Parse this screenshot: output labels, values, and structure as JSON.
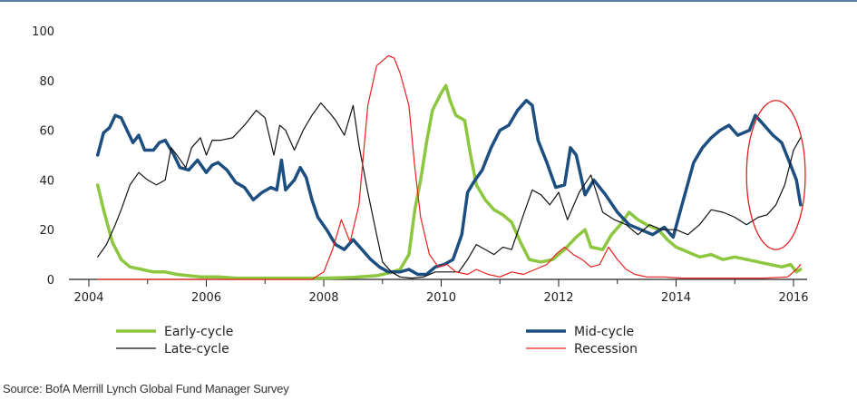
{
  "page": {
    "source": "Source: BofA Merrill Lynch Global Fund Manager Survey",
    "rule_color": "#5b7f9e"
  },
  "chart_data": {
    "type": "line",
    "title": "",
    "xlabel": "",
    "ylabel": "",
    "xlim": [
      2004,
      2016.3
    ],
    "ylim": [
      0,
      100
    ],
    "x_ticks": [
      "2004",
      "2006",
      "2008",
      "2010",
      "2012",
      "2014",
      "2016"
    ],
    "y_ticks": [
      "100",
      "80",
      "60",
      "40",
      "20",
      "0"
    ],
    "grid": false,
    "legend_position": "bottom",
    "annotation": {
      "type": "ellipse",
      "color": "#e02020",
      "center_x": 2015.7,
      "center_y": 42,
      "rx": 0.5,
      "ry": 30
    },
    "series": [
      {
        "name": "Early-cycle",
        "color": "#8dc63f",
        "width": 3.5,
        "points": [
          [
            2004.15,
            38
          ],
          [
            2004.25,
            28
          ],
          [
            2004.4,
            15
          ],
          [
            2004.55,
            8
          ],
          [
            2004.7,
            5
          ],
          [
            2004.9,
            4
          ],
          [
            2005.1,
            3
          ],
          [
            2005.3,
            3
          ],
          [
            2005.5,
            2
          ],
          [
            2005.7,
            1.5
          ],
          [
            2005.9,
            1
          ],
          [
            2006.2,
            1
          ],
          [
            2006.5,
            0.5
          ],
          [
            2007,
            0.5
          ],
          [
            2007.5,
            0.5
          ],
          [
            2008,
            0.5
          ],
          [
            2008.5,
            0.8
          ],
          [
            2008.9,
            1.5
          ],
          [
            2009.1,
            2.5
          ],
          [
            2009.3,
            4
          ],
          [
            2009.45,
            10
          ],
          [
            2009.55,
            28
          ],
          [
            2009.65,
            40
          ],
          [
            2009.75,
            55
          ],
          [
            2009.85,
            68
          ],
          [
            2010.0,
            75
          ],
          [
            2010.08,
            78
          ],
          [
            2010.15,
            72
          ],
          [
            2010.25,
            66
          ],
          [
            2010.4,
            64
          ],
          [
            2010.5,
            50
          ],
          [
            2010.6,
            38
          ],
          [
            2010.75,
            32
          ],
          [
            2010.9,
            28
          ],
          [
            2011.05,
            26
          ],
          [
            2011.2,
            23
          ],
          [
            2011.35,
            15
          ],
          [
            2011.5,
            8
          ],
          [
            2011.7,
            7
          ],
          [
            2011.9,
            8
          ],
          [
            2012.1,
            12
          ],
          [
            2012.3,
            17
          ],
          [
            2012.45,
            20
          ],
          [
            2012.55,
            13
          ],
          [
            2012.75,
            12
          ],
          [
            2012.9,
            18
          ],
          [
            2013.05,
            22
          ],
          [
            2013.2,
            27
          ],
          [
            2013.35,
            24
          ],
          [
            2013.5,
            22
          ],
          [
            2013.7,
            20
          ],
          [
            2013.85,
            16
          ],
          [
            2014.0,
            13
          ],
          [
            2014.2,
            11
          ],
          [
            2014.4,
            9
          ],
          [
            2014.6,
            10
          ],
          [
            2014.8,
            8
          ],
          [
            2015.0,
            9
          ],
          [
            2015.2,
            8
          ],
          [
            2015.4,
            7
          ],
          [
            2015.6,
            6
          ],
          [
            2015.8,
            5
          ],
          [
            2015.95,
            6
          ],
          [
            2016.05,
            3
          ],
          [
            2016.12,
            4
          ]
        ]
      },
      {
        "name": "Mid-cycle",
        "color": "#1c4e80",
        "width": 3.5,
        "points": [
          [
            2004.15,
            50
          ],
          [
            2004.25,
            59
          ],
          [
            2004.35,
            61
          ],
          [
            2004.45,
            66
          ],
          [
            2004.55,
            65
          ],
          [
            2004.65,
            60
          ],
          [
            2004.75,
            55
          ],
          [
            2004.85,
            58
          ],
          [
            2004.95,
            52
          ],
          [
            2005.1,
            52
          ],
          [
            2005.2,
            55
          ],
          [
            2005.3,
            56
          ],
          [
            2005.45,
            50
          ],
          [
            2005.55,
            45
          ],
          [
            2005.7,
            44
          ],
          [
            2005.85,
            48
          ],
          [
            2006.0,
            43
          ],
          [
            2006.1,
            46
          ],
          [
            2006.2,
            47
          ],
          [
            2006.35,
            44
          ],
          [
            2006.5,
            39
          ],
          [
            2006.65,
            37
          ],
          [
            2006.8,
            32
          ],
          [
            2006.95,
            35
          ],
          [
            2007.1,
            37
          ],
          [
            2007.2,
            36
          ],
          [
            2007.28,
            48
          ],
          [
            2007.35,
            36
          ],
          [
            2007.5,
            40
          ],
          [
            2007.6,
            45
          ],
          [
            2007.7,
            41
          ],
          [
            2007.8,
            32
          ],
          [
            2007.9,
            25
          ],
          [
            2008.05,
            20
          ],
          [
            2008.2,
            14
          ],
          [
            2008.35,
            12
          ],
          [
            2008.5,
            16
          ],
          [
            2008.65,
            12
          ],
          [
            2008.8,
            8
          ],
          [
            2008.95,
            5
          ],
          [
            2009.1,
            3
          ],
          [
            2009.3,
            3
          ],
          [
            2009.45,
            4
          ],
          [
            2009.6,
            2
          ],
          [
            2009.75,
            2
          ],
          [
            2009.9,
            5
          ],
          [
            2010.05,
            6
          ],
          [
            2010.2,
            8
          ],
          [
            2010.35,
            18
          ],
          [
            2010.45,
            35
          ],
          [
            2010.55,
            39
          ],
          [
            2010.7,
            44
          ],
          [
            2010.85,
            53
          ],
          [
            2011.0,
            60
          ],
          [
            2011.15,
            62
          ],
          [
            2011.3,
            68
          ],
          [
            2011.45,
            72
          ],
          [
            2011.55,
            70
          ],
          [
            2011.65,
            56
          ],
          [
            2011.8,
            47
          ],
          [
            2011.95,
            37
          ],
          [
            2012.1,
            38
          ],
          [
            2012.2,
            53
          ],
          [
            2012.3,
            50
          ],
          [
            2012.45,
            34
          ],
          [
            2012.6,
            40
          ],
          [
            2012.8,
            34
          ],
          [
            2013.0,
            27
          ],
          [
            2013.2,
            22
          ],
          [
            2013.4,
            20
          ],
          [
            2013.6,
            18
          ],
          [
            2013.8,
            21
          ],
          [
            2013.95,
            17
          ],
          [
            2014.1,
            30
          ],
          [
            2014.3,
            47
          ],
          [
            2014.45,
            53
          ],
          [
            2014.6,
            57
          ],
          [
            2014.75,
            60
          ],
          [
            2014.9,
            62
          ],
          [
            2015.05,
            58
          ],
          [
            2015.25,
            60
          ],
          [
            2015.35,
            66
          ],
          [
            2015.5,
            62
          ],
          [
            2015.65,
            58
          ],
          [
            2015.8,
            55
          ],
          [
            2015.95,
            46
          ],
          [
            2016.05,
            40
          ],
          [
            2016.12,
            30
          ]
        ]
      },
      {
        "name": "Late-cycle",
        "color": "#111111",
        "width": 1.2,
        "points": [
          [
            2004.15,
            9
          ],
          [
            2004.3,
            14
          ],
          [
            2004.45,
            22
          ],
          [
            2004.55,
            28
          ],
          [
            2004.7,
            38
          ],
          [
            2004.85,
            43
          ],
          [
            2005.0,
            40
          ],
          [
            2005.15,
            38
          ],
          [
            2005.3,
            40
          ],
          [
            2005.4,
            53
          ],
          [
            2005.5,
            50
          ],
          [
            2005.65,
            45
          ],
          [
            2005.75,
            53
          ],
          [
            2005.9,
            57
          ],
          [
            2006.0,
            50
          ],
          [
            2006.1,
            56
          ],
          [
            2006.25,
            56
          ],
          [
            2006.45,
            57
          ],
          [
            2006.65,
            62
          ],
          [
            2006.85,
            68
          ],
          [
            2007.0,
            65
          ],
          [
            2007.15,
            50
          ],
          [
            2007.25,
            62
          ],
          [
            2007.35,
            60
          ],
          [
            2007.5,
            52
          ],
          [
            2007.65,
            60
          ],
          [
            2007.8,
            66
          ],
          [
            2007.95,
            71
          ],
          [
            2008.1,
            67
          ],
          [
            2008.2,
            64
          ],
          [
            2008.35,
            58
          ],
          [
            2008.5,
            70
          ],
          [
            2008.6,
            54
          ],
          [
            2008.75,
            35
          ],
          [
            2008.9,
            18
          ],
          [
            2009.0,
            7
          ],
          [
            2009.15,
            3
          ],
          [
            2009.3,
            1
          ],
          [
            2009.5,
            0.5
          ],
          [
            2009.7,
            1
          ],
          [
            2009.9,
            3
          ],
          [
            2010.1,
            3
          ],
          [
            2010.3,
            3
          ],
          [
            2010.45,
            8
          ],
          [
            2010.6,
            14
          ],
          [
            2010.75,
            12
          ],
          [
            2010.9,
            10
          ],
          [
            2011.05,
            13
          ],
          [
            2011.2,
            12
          ],
          [
            2011.4,
            26
          ],
          [
            2011.55,
            36
          ],
          [
            2011.7,
            34
          ],
          [
            2011.85,
            30
          ],
          [
            2012.0,
            35
          ],
          [
            2012.15,
            24
          ],
          [
            2012.35,
            35
          ],
          [
            2012.55,
            42
          ],
          [
            2012.75,
            27
          ],
          [
            2012.95,
            24
          ],
          [
            2013.15,
            22
          ],
          [
            2013.35,
            18
          ],
          [
            2013.55,
            22
          ],
          [
            2013.75,
            20
          ],
          [
            2014.0,
            20
          ],
          [
            2014.2,
            18
          ],
          [
            2014.4,
            22
          ],
          [
            2014.6,
            28
          ],
          [
            2014.8,
            27
          ],
          [
            2015.0,
            25
          ],
          [
            2015.2,
            22
          ],
          [
            2015.4,
            25
          ],
          [
            2015.55,
            26
          ],
          [
            2015.7,
            30
          ],
          [
            2015.85,
            38
          ],
          [
            2016.0,
            52
          ],
          [
            2016.12,
            57
          ]
        ]
      },
      {
        "name": "Recession",
        "color": "#e8201e",
        "width": 1.2,
        "points": [
          [
            2004.15,
            0
          ],
          [
            2007.5,
            0
          ],
          [
            2007.8,
            0
          ],
          [
            2008.0,
            3
          ],
          [
            2008.15,
            12
          ],
          [
            2008.3,
            24
          ],
          [
            2008.45,
            15
          ],
          [
            2008.6,
            30
          ],
          [
            2008.75,
            70
          ],
          [
            2008.9,
            86
          ],
          [
            2009.0,
            88
          ],
          [
            2009.1,
            90
          ],
          [
            2009.2,
            89
          ],
          [
            2009.3,
            83
          ],
          [
            2009.45,
            70
          ],
          [
            2009.55,
            45
          ],
          [
            2009.65,
            25
          ],
          [
            2009.8,
            10
          ],
          [
            2009.95,
            5
          ],
          [
            2010.1,
            6
          ],
          [
            2010.25,
            3
          ],
          [
            2010.45,
            2
          ],
          [
            2010.6,
            4
          ],
          [
            2010.8,
            2
          ],
          [
            2011.0,
            1
          ],
          [
            2011.2,
            3
          ],
          [
            2011.4,
            2
          ],
          [
            2011.6,
            4
          ],
          [
            2011.8,
            6
          ],
          [
            2011.95,
            10
          ],
          [
            2012.1,
            13
          ],
          [
            2012.25,
            10
          ],
          [
            2012.4,
            8
          ],
          [
            2012.55,
            5
          ],
          [
            2012.7,
            6
          ],
          [
            2012.85,
            13
          ],
          [
            2013.0,
            8
          ],
          [
            2013.15,
            4
          ],
          [
            2013.3,
            2
          ],
          [
            2013.5,
            1
          ],
          [
            2013.8,
            1
          ],
          [
            2014.1,
            0.5
          ],
          [
            2014.5,
            0.5
          ],
          [
            2015.0,
            0.5
          ],
          [
            2015.5,
            0.5
          ],
          [
            2015.9,
            1
          ],
          [
            2016.05,
            4
          ],
          [
            2016.12,
            6
          ]
        ]
      }
    ]
  }
}
